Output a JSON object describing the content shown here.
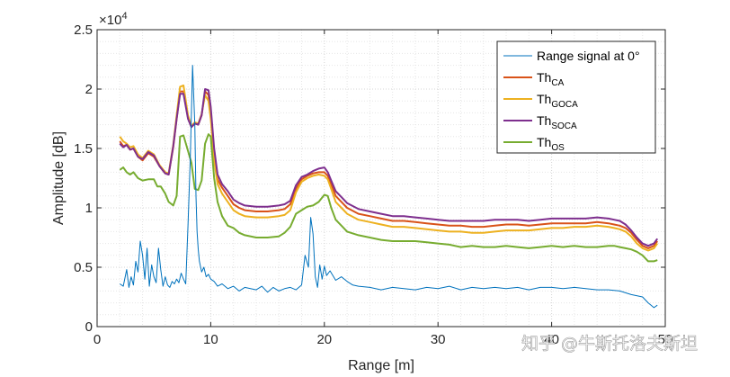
{
  "chart_data": {
    "type": "line",
    "title": "",
    "xlabel": "Range [m]",
    "ylabel": "Amplitude [dB]",
    "xlim": [
      0,
      50
    ],
    "ylim": [
      0,
      25000
    ],
    "y_multiplier_label": "×10^4",
    "y_multiplier_base": "×10",
    "y_multiplier_exp": "4",
    "grid": "major-and-minor-dotted",
    "legend_position": "top-right",
    "x_ticks": [
      "0",
      "10",
      "20",
      "30",
      "40",
      "50"
    ],
    "y_ticks": [
      "0",
      "0.5",
      "1",
      "1.5",
      "2",
      "2.5"
    ],
    "series": [
      {
        "name": "Range signal at 0°",
        "label_main": "Range signal at 0°",
        "label_sub": "",
        "color": "#0072BD",
        "width": 1,
        "x": [
          2.0,
          2.3,
          2.6,
          2.8,
          3.0,
          3.2,
          3.4,
          3.6,
          3.8,
          4.0,
          4.2,
          4.4,
          4.6,
          4.8,
          5.0,
          5.2,
          5.4,
          5.6,
          5.8,
          6.0,
          6.2,
          6.4,
          6.6,
          6.8,
          7.0,
          7.2,
          7.4,
          7.6,
          7.8,
          8.0,
          8.2,
          8.4,
          8.6,
          8.7,
          8.8,
          8.9,
          9.0,
          9.2,
          9.4,
          9.6,
          9.8,
          10.0,
          10.3,
          10.6,
          11.0,
          11.5,
          12.0,
          12.5,
          13.0,
          13.5,
          14.0,
          14.5,
          15.0,
          15.5,
          16.0,
          16.5,
          17.0,
          17.5,
          18.0,
          18.3,
          18.6,
          18.8,
          19.0,
          19.2,
          19.4,
          19.6,
          19.8,
          20.0,
          20.2,
          20.5,
          21.0,
          21.5,
          22.0,
          22.5,
          23.0,
          24.0,
          25.0,
          26.0,
          27.0,
          28.0,
          29.0,
          30.0,
          31.0,
          32.0,
          33.0,
          34.0,
          35.0,
          36.0,
          37.0,
          38.0,
          39.0,
          40.0,
          41.0,
          42.0,
          43.0,
          44.0,
          45.0,
          46.0,
          47.0,
          48.0,
          48.5,
          49.0,
          49.3
        ],
        "y": [
          3600,
          3400,
          4800,
          3300,
          4200,
          3500,
          5500,
          4600,
          7200,
          6000,
          4000,
          6600,
          3400,
          5200,
          4200,
          3700,
          6600,
          4800,
          3400,
          4200,
          3500,
          3300,
          3800,
          3600,
          4000,
          3700,
          4500,
          4000,
          3600,
          8500,
          14000,
          22000,
          17000,
          11000,
          8000,
          6500,
          5500,
          4600,
          5000,
          4200,
          4400,
          4000,
          3800,
          3400,
          3600,
          3200,
          3400,
          3000,
          3300,
          3200,
          3100,
          3400,
          2900,
          3300,
          3000,
          3200,
          3300,
          3100,
          3500,
          6000,
          5000,
          9200,
          7800,
          4200,
          3300,
          5200,
          4000,
          5100,
          4300,
          4700,
          3900,
          4200,
          3800,
          3500,
          3400,
          3300,
          3100,
          3300,
          3200,
          3100,
          3300,
          3200,
          3400,
          3100,
          3300,
          3200,
          3300,
          3200,
          3300,
          3100,
          3300,
          3300,
          3200,
          3300,
          3200,
          3100,
          3100,
          3000,
          2700,
          2500,
          2000,
          1600,
          1800
        ]
      },
      {
        "name": "ThCA",
        "label_main": "Th",
        "label_sub": "CA",
        "color": "#D95319",
        "width": 2,
        "x": [
          2.0,
          2.3,
          2.6,
          2.9,
          3.2,
          3.6,
          4.0,
          4.5,
          5.0,
          5.5,
          6.0,
          6.3,
          6.7,
          7.0,
          7.3,
          7.6,
          8.0,
          8.3,
          8.6,
          8.9,
          9.2,
          9.5,
          9.8,
          10.0,
          10.3,
          10.6,
          11.0,
          11.5,
          12.0,
          12.5,
          13.0,
          14.0,
          15.0,
          16.0,
          16.5,
          17.0,
          17.5,
          18.0,
          18.5,
          19.0,
          19.5,
          20.0,
          20.3,
          20.6,
          21.0,
          21.5,
          22.0,
          23.0,
          24.0,
          25.0,
          26.0,
          27.0,
          28.0,
          29.0,
          30.0,
          31.0,
          32.0,
          33.0,
          34.0,
          35.0,
          36.0,
          37.0,
          38.0,
          39.0,
          40.0,
          41.0,
          42.0,
          43.0,
          44.0,
          45.0,
          45.5,
          46.0,
          46.5,
          47.0,
          47.5,
          48.0,
          48.5,
          49.0,
          49.3
        ],
        "y": [
          15600,
          15200,
          15300,
          14900,
          15000,
          14300,
          14000,
          14600,
          14300,
          13500,
          12900,
          12800,
          15100,
          17500,
          19800,
          19800,
          17600,
          16800,
          17100,
          17000,
          17800,
          19800,
          19500,
          18000,
          14500,
          12400,
          11700,
          11000,
          10300,
          10000,
          9800,
          9700,
          9700,
          9800,
          9900,
          10300,
          11600,
          12400,
          12700,
          12900,
          13000,
          13000,
          12700,
          12000,
          11000,
          10500,
          10000,
          9500,
          9300,
          9100,
          8900,
          8900,
          8800,
          8700,
          8600,
          8500,
          8500,
          8400,
          8400,
          8500,
          8600,
          8600,
          8500,
          8600,
          8700,
          8700,
          8700,
          8700,
          8800,
          8700,
          8600,
          8500,
          8300,
          7900,
          7300,
          6800,
          6600,
          6800,
          7200
        ]
      },
      {
        "name": "ThGOCA",
        "label_main": "Th",
        "label_sub": "GOCA",
        "color": "#EDB120",
        "width": 2,
        "x": [
          2.0,
          2.3,
          2.6,
          2.9,
          3.2,
          3.6,
          4.0,
          4.5,
          5.0,
          5.5,
          6.0,
          6.3,
          6.7,
          7.0,
          7.3,
          7.6,
          8.0,
          8.3,
          8.6,
          8.9,
          9.2,
          9.5,
          9.8,
          10.0,
          10.3,
          10.6,
          11.0,
          11.5,
          12.0,
          12.5,
          13.0,
          14.0,
          15.0,
          16.0,
          16.5,
          17.0,
          17.5,
          18.0,
          18.5,
          19.0,
          19.5,
          20.0,
          20.3,
          20.6,
          21.0,
          21.5,
          22.0,
          23.0,
          24.0,
          25.0,
          26.0,
          27.0,
          28.0,
          29.0,
          30.0,
          31.0,
          32.0,
          33.0,
          34.0,
          35.0,
          36.0,
          37.0,
          38.0,
          39.0,
          40.0,
          41.0,
          42.0,
          43.0,
          44.0,
          45.0,
          45.5,
          46.0,
          46.5,
          47.0,
          47.5,
          48.0,
          48.5,
          49.0,
          49.3
        ],
        "y": [
          16000,
          15600,
          15400,
          15100,
          15200,
          14500,
          14200,
          14800,
          14500,
          13600,
          13000,
          12900,
          15300,
          17800,
          20200,
          20300,
          17800,
          16900,
          17200,
          17100,
          17900,
          19500,
          19000,
          17500,
          14000,
          12000,
          11200,
          10500,
          9800,
          9500,
          9300,
          9200,
          9200,
          9300,
          9400,
          9800,
          11300,
          12200,
          12500,
          12700,
          12800,
          12700,
          12400,
          11600,
          10500,
          10000,
          9500,
          9000,
          8800,
          8600,
          8400,
          8400,
          8300,
          8200,
          8100,
          8000,
          8000,
          7900,
          7900,
          8000,
          8100,
          8100,
          8100,
          8200,
          8300,
          8300,
          8400,
          8400,
          8500,
          8400,
          8300,
          8200,
          8000,
          7600,
          7000,
          6600,
          6400,
          6600,
          7000
        ]
      },
      {
        "name": "ThSOCA",
        "label_main": "Th",
        "label_sub": "SOCA",
        "color": "#7E2F8E",
        "width": 2,
        "x": [
          2.0,
          2.3,
          2.6,
          2.9,
          3.2,
          3.6,
          4.0,
          4.5,
          5.0,
          5.5,
          6.0,
          6.3,
          6.7,
          7.0,
          7.3,
          7.6,
          8.0,
          8.3,
          8.6,
          8.9,
          9.2,
          9.5,
          9.8,
          10.0,
          10.3,
          10.6,
          11.0,
          11.5,
          12.0,
          12.5,
          13.0,
          14.0,
          15.0,
          16.0,
          16.5,
          17.0,
          17.5,
          18.0,
          18.5,
          19.0,
          19.5,
          20.0,
          20.3,
          20.6,
          21.0,
          21.5,
          22.0,
          23.0,
          24.0,
          25.0,
          26.0,
          27.0,
          28.0,
          29.0,
          30.0,
          31.0,
          32.0,
          33.0,
          34.0,
          35.0,
          36.0,
          37.0,
          38.0,
          39.0,
          40.0,
          41.0,
          42.0,
          43.0,
          44.0,
          45.0,
          45.5,
          46.0,
          46.5,
          47.0,
          47.5,
          48.0,
          48.5,
          49.0,
          49.3
        ],
        "y": [
          15400,
          15100,
          15300,
          14900,
          15000,
          14300,
          14100,
          14700,
          14400,
          13500,
          12900,
          12800,
          15200,
          17500,
          19600,
          19600,
          17500,
          16800,
          17100,
          17000,
          17800,
          20000,
          19900,
          18500,
          15000,
          12800,
          12000,
          11400,
          10700,
          10400,
          10200,
          10100,
          10100,
          10200,
          10300,
          10600,
          11900,
          12600,
          12800,
          13100,
          13300,
          13400,
          13000,
          12300,
          11400,
          10900,
          10400,
          9900,
          9700,
          9500,
          9300,
          9300,
          9200,
          9100,
          9000,
          8900,
          8900,
          8900,
          8900,
          9000,
          9000,
          9000,
          8900,
          9000,
          9100,
          9100,
          9100,
          9100,
          9200,
          9100,
          9000,
          8900,
          8600,
          8100,
          7500,
          7000,
          6800,
          7000,
          7400
        ]
      },
      {
        "name": "ThOS",
        "label_main": "Th",
        "label_sub": "OS",
        "color": "#77AC30",
        "width": 2,
        "x": [
          2.0,
          2.3,
          2.6,
          2.9,
          3.2,
          3.6,
          4.0,
          4.5,
          5.0,
          5.3,
          5.6,
          6.0,
          6.3,
          6.7,
          7.0,
          7.3,
          7.6,
          8.0,
          8.3,
          8.6,
          8.9,
          9.2,
          9.5,
          9.8,
          10.0,
          10.3,
          10.6,
          11.0,
          11.5,
          12.0,
          12.5,
          13.0,
          14.0,
          15.0,
          16.0,
          16.5,
          17.0,
          17.5,
          18.0,
          18.5,
          19.0,
          19.5,
          20.0,
          20.3,
          20.6,
          21.0,
          21.5,
          22.0,
          23.0,
          24.0,
          25.0,
          26.0,
          27.0,
          28.0,
          29.0,
          30.0,
          31.0,
          32.0,
          33.0,
          34.0,
          35.0,
          36.0,
          37.0,
          38.0,
          39.0,
          40.0,
          41.0,
          42.0,
          43.0,
          44.0,
          45.0,
          45.5,
          46.0,
          46.5,
          47.0,
          47.5,
          48.0,
          48.5,
          49.0,
          49.3
        ],
        "y": [
          13200,
          13400,
          13000,
          12800,
          13000,
          12500,
          12300,
          12400,
          12400,
          11800,
          11800,
          11200,
          10500,
          10200,
          11000,
          16000,
          16100,
          14800,
          13800,
          11600,
          11500,
          12300,
          15400,
          16200,
          16000,
          12500,
          10500,
          9300,
          8500,
          8300,
          7900,
          7700,
          7500,
          7500,
          7600,
          7900,
          8400,
          9500,
          9800,
          10100,
          10200,
          10500,
          11100,
          11000,
          10000,
          9000,
          8500,
          8000,
          7700,
          7500,
          7300,
          7200,
          7200,
          7200,
          7100,
          7000,
          6900,
          6700,
          6800,
          6700,
          6700,
          6800,
          6700,
          6600,
          6700,
          6800,
          6700,
          6800,
          6700,
          6700,
          6800,
          6800,
          6700,
          6600,
          6500,
          6300,
          6000,
          5500,
          5500,
          5600
        ]
      }
    ]
  },
  "watermark": "知乎 @牛斯托洛夫斯坦"
}
